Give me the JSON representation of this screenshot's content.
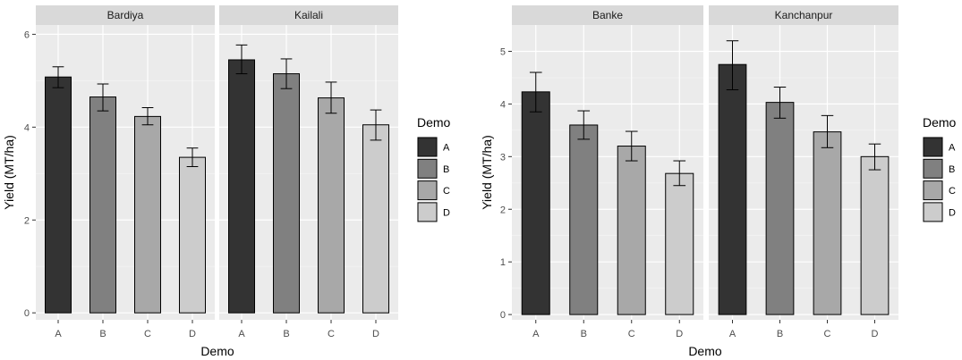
{
  "chart_data": [
    {
      "type": "bar",
      "ylabel": "Yield (MT/ha)",
      "xlabel": "Demo",
      "legend_title": "Demo",
      "legend_placement": "right",
      "categories": [
        "A",
        "B",
        "C",
        "D"
      ],
      "colors": [
        "#333333",
        "#808080",
        "#a8a8a8",
        "#cccccc"
      ],
      "ylim": [
        -0.15,
        6.2
      ],
      "yticks": [
        0,
        2,
        4,
        6
      ],
      "grid": true,
      "panels": [
        {
          "title": "Bardiya",
          "values": [
            5.08,
            4.65,
            4.23,
            3.35
          ],
          "err_low": [
            4.85,
            4.35,
            4.05,
            3.15
          ],
          "err_high": [
            5.3,
            4.93,
            4.42,
            3.55
          ]
        },
        {
          "title": "Kailali",
          "values": [
            5.45,
            5.15,
            4.63,
            4.05
          ],
          "err_low": [
            5.15,
            4.83,
            4.3,
            3.72
          ],
          "err_high": [
            5.77,
            5.47,
            4.97,
            4.37
          ]
        }
      ]
    },
    {
      "type": "bar",
      "ylabel": "Yield (MT/ha)",
      "xlabel": "Demo",
      "legend_title": "Demo",
      "legend_placement": "right",
      "categories": [
        "A",
        "B",
        "C",
        "D"
      ],
      "colors": [
        "#333333",
        "#808080",
        "#a8a8a8",
        "#cccccc"
      ],
      "ylim": [
        -0.1,
        5.5
      ],
      "yticks": [
        0,
        1,
        2,
        3,
        4,
        5
      ],
      "grid": true,
      "panels": [
        {
          "title": "Banke",
          "values": [
            4.23,
            3.6,
            3.2,
            2.68
          ],
          "err_low": [
            3.85,
            3.33,
            2.92,
            2.45
          ],
          "err_high": [
            4.6,
            3.87,
            3.48,
            2.92
          ]
        },
        {
          "title": "Kanchanpur",
          "values": [
            4.75,
            4.03,
            3.47,
            3.0
          ],
          "err_low": [
            4.27,
            3.73,
            3.17,
            2.75
          ],
          "err_high": [
            5.2,
            4.32,
            3.78,
            3.24
          ]
        }
      ]
    }
  ]
}
